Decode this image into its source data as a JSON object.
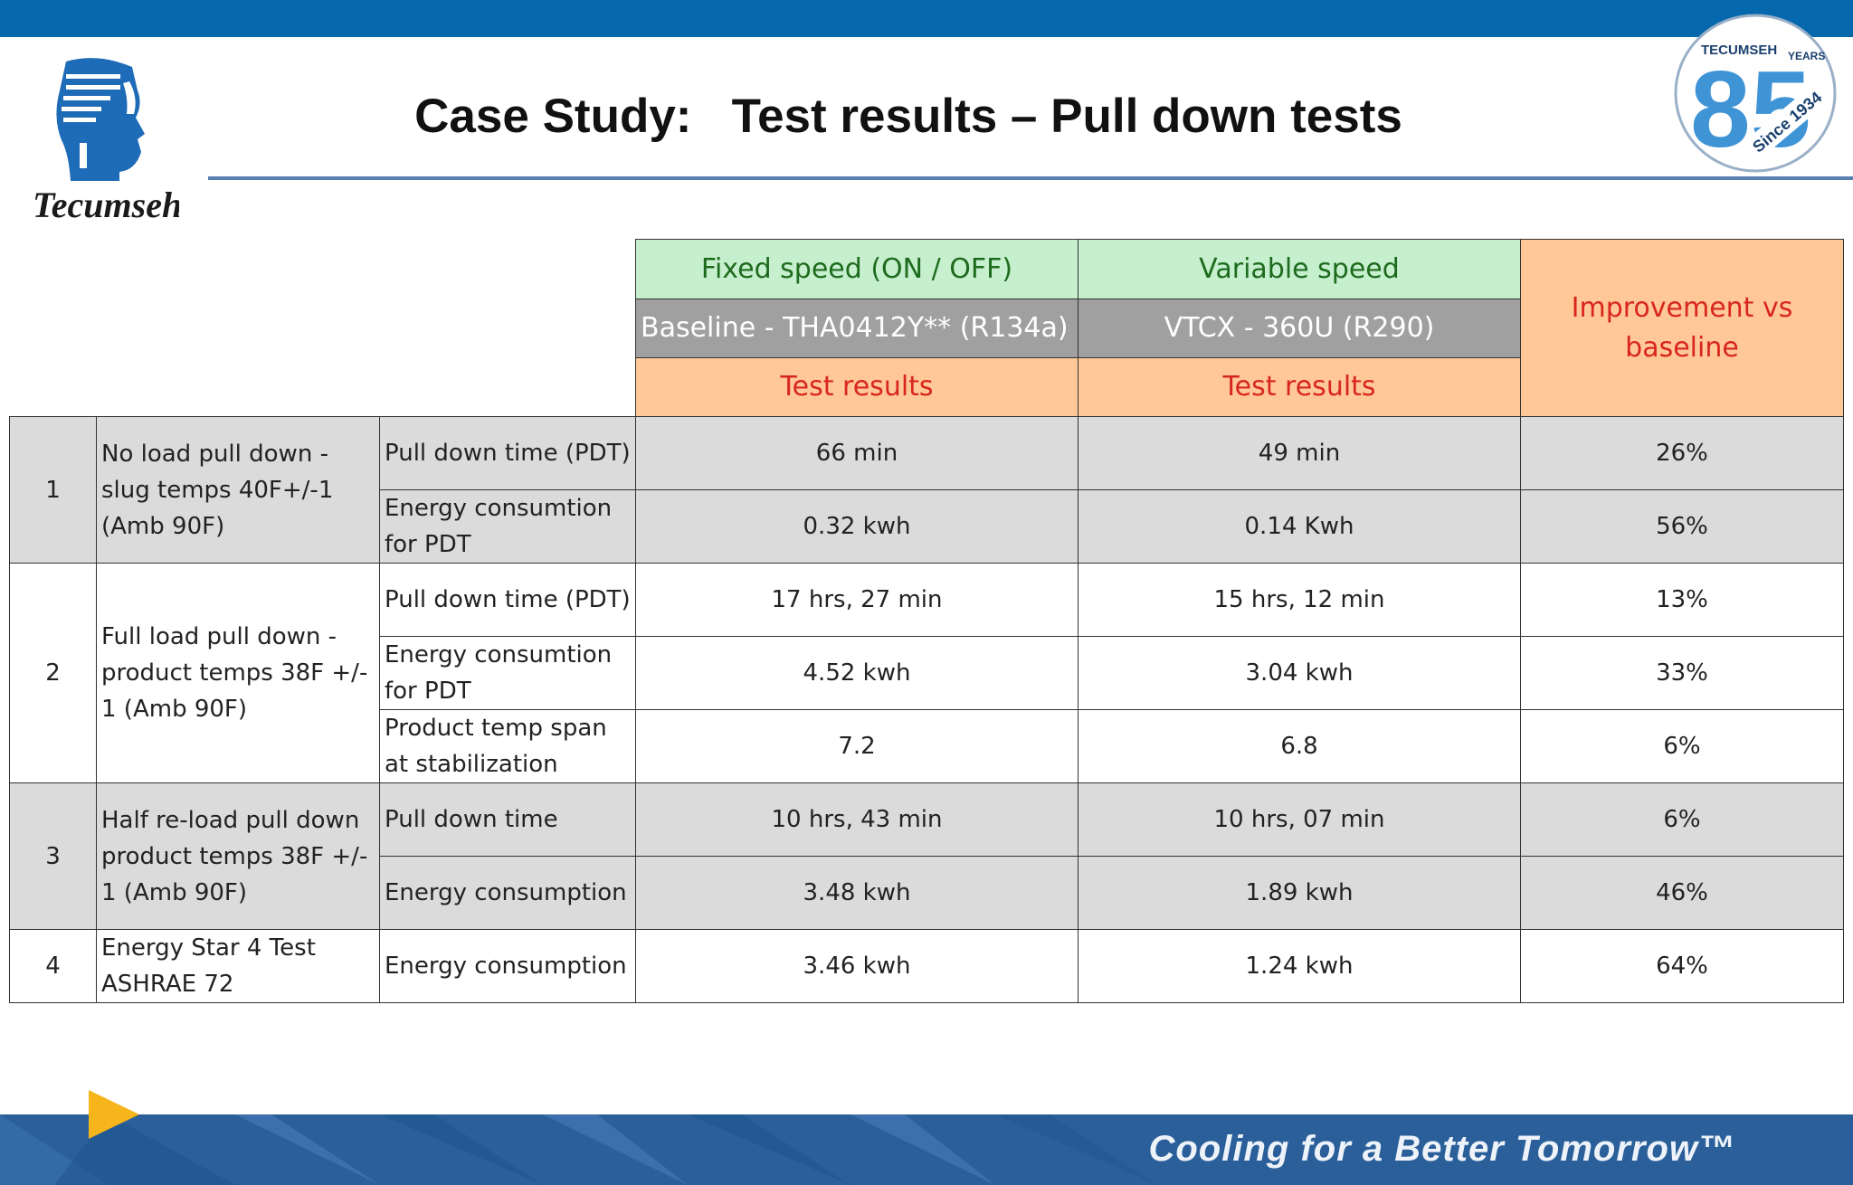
{
  "title": "Case Study:   Test results – Pull down tests",
  "brand": {
    "left_logo_text": "Tecumseh",
    "right_logo_top": "TECUMSEH",
    "right_logo_years": "YEARS",
    "right_logo_number": "85",
    "right_logo_since": "Since 1934"
  },
  "colors": {
    "top_bar": "#0568ad",
    "header_green": "#c6efce",
    "header_gray": "#a0a0a0",
    "header_orange": "#ffc896",
    "header_red_text": "#d8261e",
    "row_gray": "#dcdbdc",
    "footer": "#2a5f9a",
    "arrow": "#f6b51a"
  },
  "table": {
    "header": {
      "fixed_speed": "Fixed speed (ON / OFF)",
      "variable_speed": "Variable speed",
      "baseline_model": "Baseline - THA0412Y** (R134a)",
      "vtcx_model": "VTCX - 360U (R290)",
      "test_results_1": "Test results",
      "test_results_2": "Test results",
      "improvement": "Improvement vs baseline"
    },
    "rows": [
      {
        "num": "1",
        "test": "No load pull down - slug temps 40F+/-1 (Amb 90F)",
        "metric": "Pull down time (PDT)",
        "baseline": "66 min",
        "variable": "49 min",
        "improvement": "26%"
      },
      {
        "metric": "Energy consumtion for PDT",
        "baseline": "0.32 kwh",
        "variable": "0.14 Kwh",
        "improvement": "56%"
      },
      {
        "num": "2",
        "test": "Full load pull down - product temps 38F +/- 1 (Amb 90F)",
        "metric": "Pull down time (PDT)",
        "baseline": "17 hrs, 27 min",
        "variable": "15 hrs, 12 min",
        "improvement": "13%"
      },
      {
        "metric": "Energy consumtion for PDT",
        "baseline": "4.52 kwh",
        "variable": "3.04 kwh",
        "improvement": "33%"
      },
      {
        "metric": "Product temp span at stabilization",
        "baseline": "7.2",
        "variable": "6.8",
        "improvement": "6%"
      },
      {
        "num": "3",
        "test": "Half re-load pull down product temps 38F +/- 1 (Amb 90F)",
        "metric": "Pull down time",
        "baseline": "10 hrs, 43 min",
        "variable": "10 hrs, 07 min",
        "improvement": "6%"
      },
      {
        "metric": "Energy consumption",
        "baseline": "3.48 kwh",
        "variable": "1.89 kwh",
        "improvement": "46%"
      },
      {
        "num": "4",
        "test": "Energy Star 4 Test ASHRAE 72",
        "metric": "Energy consumption",
        "baseline": "3.46 kwh",
        "variable": "1.24 kwh",
        "improvement": "64%"
      }
    ]
  },
  "footer": {
    "tagline": "Cooling for a Better Tomorrow™"
  }
}
